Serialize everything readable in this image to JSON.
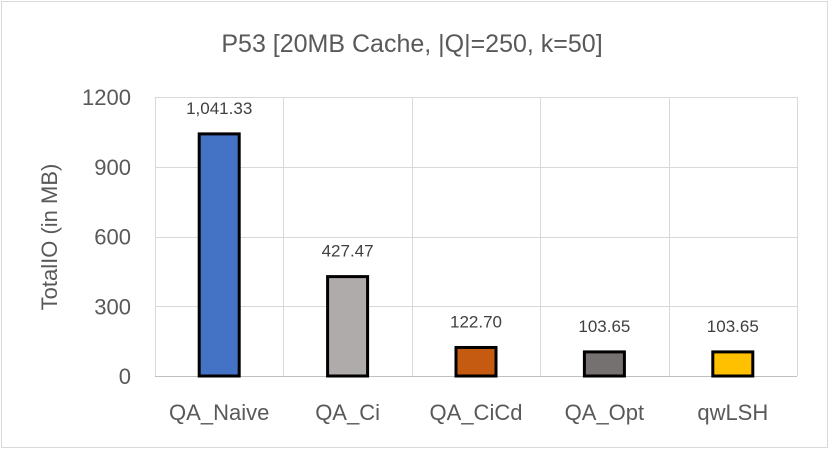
{
  "chart_data": {
    "type": "bar",
    "title": "P53 [20MB Cache, |Q|=250, k=50]",
    "xlabel": "",
    "ylabel": "TotalIO (in MB)",
    "ylim": [
      0,
      1200
    ],
    "yticks": [
      0,
      300,
      600,
      900,
      1200
    ],
    "ytick_labels": [
      "0",
      "300",
      "600",
      "900",
      "1200"
    ],
    "categories": [
      "QA_Naive",
      "QA_Ci",
      "QA_CiCd",
      "QA_Opt",
      "qwLSH"
    ],
    "values": [
      1041.33,
      427.47,
      122.7,
      103.65,
      103.65
    ],
    "data_labels": [
      "1,041.33",
      "427.47",
      "122.70",
      "103.65",
      "103.65"
    ],
    "colors": [
      "#4472c4",
      "#afabab",
      "#c55a11",
      "#767171",
      "#ffc000"
    ],
    "bar_edge_color": "#000000",
    "grid": true,
    "legend": "none"
  }
}
